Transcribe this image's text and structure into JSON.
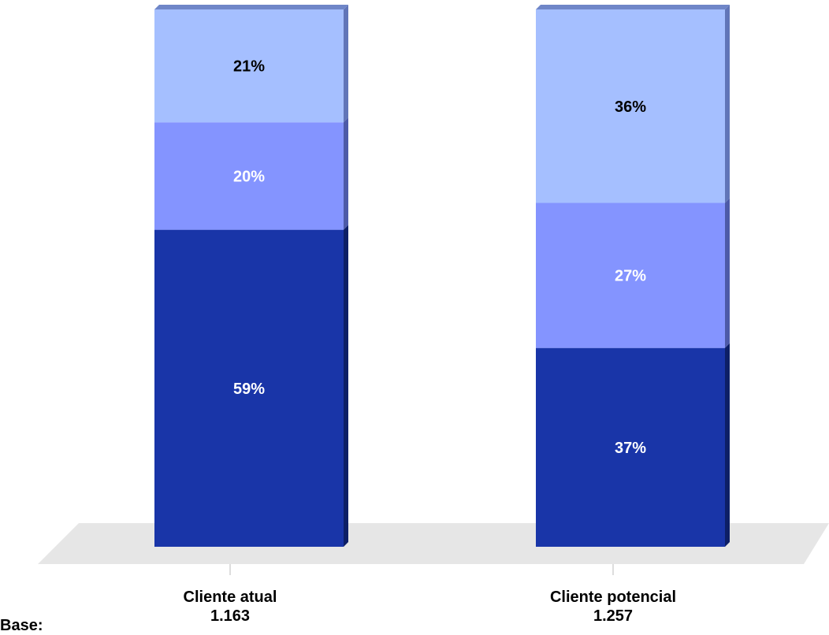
{
  "chart_data": {
    "type": "bar",
    "stacked": true,
    "orientation": "vertical",
    "categories": [
      "Cliente atual",
      "Cliente potencial"
    ],
    "bases": [
      "1.163",
      "1.257"
    ],
    "base_label": "Base:",
    "series": [
      {
        "values": [
          59,
          37
        ],
        "labels": [
          "59%",
          "37%"
        ],
        "color": "#1935A8",
        "label_color": "#FFFFFF"
      },
      {
        "values": [
          20,
          27
        ],
        "labels": [
          "20%",
          "27%"
        ],
        "color": "#8494FF",
        "label_color": "#FFFFFF"
      },
      {
        "values": [
          21,
          36
        ],
        "labels": [
          "21%",
          "36%"
        ],
        "color": "#A5BFFF",
        "label_color": "#000000"
      }
    ],
    "ylim": [
      0,
      100
    ],
    "legend": false,
    "grid": false,
    "floor_color": "#E6E6E6"
  }
}
